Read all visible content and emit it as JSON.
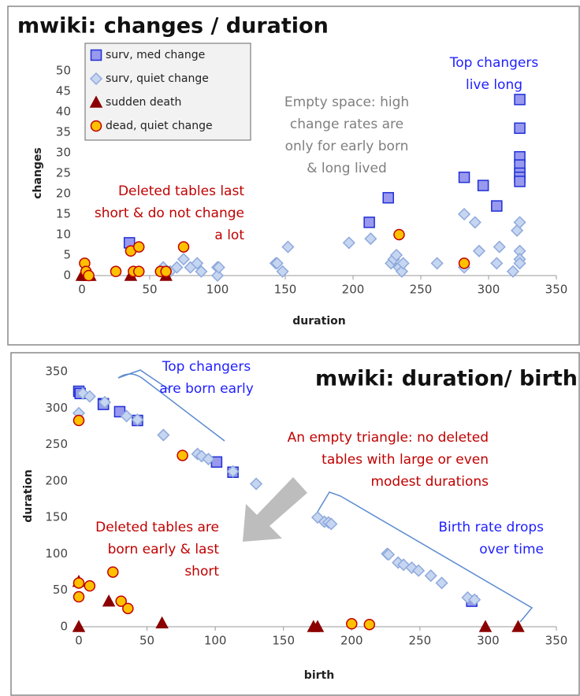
{
  "chart_data": [
    {
      "type": "scatter",
      "title": "mwiki:  changes / duration",
      "xlabel": "duration",
      "ylabel": "changes",
      "xlim": [
        0,
        350
      ],
      "ylim": [
        0,
        50
      ],
      "xticks": [
        0,
        50,
        100,
        150,
        200,
        250,
        300,
        350
      ],
      "yticks": [
        0,
        5,
        10,
        15,
        20,
        25,
        30,
        35,
        40,
        45,
        50
      ],
      "legend": "upper left",
      "series": [
        {
          "name": "surv, med change",
          "marker": "square",
          "color": "#9999ee",
          "edgecolor": "#1f2fd6",
          "x": [
            35,
            212,
            226,
            282,
            296,
            306,
            323,
            323,
            323,
            323,
            323,
            323,
            323
          ],
          "values": [
            8,
            13,
            19,
            24,
            22,
            17,
            43,
            36,
            29,
            27,
            25,
            24,
            23
          ]
        },
        {
          "name": "surv, quiet change",
          "marker": "diamond",
          "color": "#c6d6f1",
          "edgecolor": "#8ea9dc",
          "x": [
            60,
            65,
            70,
            75,
            80,
            85,
            88,
            100,
            100,
            101,
            143,
            144,
            148,
            152,
            197,
            213,
            228,
            230,
            232,
            234,
            236,
            237,
            262,
            282,
            282,
            290,
            293,
            306,
            308,
            318,
            321,
            323,
            323,
            323,
            323
          ],
          "values": [
            2,
            1,
            2,
            4,
            2,
            3,
            1,
            2,
            0,
            2,
            3,
            3,
            1,
            7,
            8,
            9,
            3,
            4,
            5,
            2,
            1,
            3,
            3,
            15,
            2,
            13,
            6,
            3,
            7,
            1,
            11,
            13,
            6,
            4,
            3
          ]
        },
        {
          "name": "sudden death",
          "marker": "triangle",
          "color": "#8b0000",
          "edgecolor": "#8b0000",
          "x": [
            0,
            2,
            4,
            6,
            36,
            62
          ],
          "values": [
            0,
            0,
            0,
            0,
            0,
            0
          ]
        },
        {
          "name": "dead, quiet change",
          "marker": "circle",
          "color": "#ffc000",
          "edgecolor": "#c00000",
          "x": [
            2,
            3,
            5,
            25,
            36,
            38,
            42,
            42,
            58,
            62,
            75,
            234,
            282
          ],
          "values": [
            3,
            1,
            0,
            1,
            6,
            1,
            7,
            1,
            1,
            1,
            7,
            10,
            3
          ]
        }
      ],
      "annotations": [
        {
          "text": [
            "Top changers",
            "live long"
          ],
          "color": "#1f1fff"
        },
        {
          "text": [
            "Empty space: high",
            "change rates are",
            "only for early born",
            "& long lived"
          ],
          "color": "#7f7f7f"
        },
        {
          "text": [
            "Deleted tables last",
            "short & do not change",
            "a lot"
          ],
          "color": "#c00000"
        }
      ]
    },
    {
      "type": "scatter",
      "title": "mwiki: duration/ birth",
      "xlabel": "birth",
      "ylabel": "duration",
      "xlim": [
        0,
        350
      ],
      "ylim": [
        0,
        350
      ],
      "xticks": [
        0,
        50,
        100,
        150,
        200,
        250,
        300,
        350
      ],
      "yticks": [
        0,
        50,
        100,
        150,
        200,
        250,
        300,
        350
      ],
      "legend": false,
      "series": [
        {
          "name": "surv, med change",
          "marker": "square",
          "color": "#9999ee",
          "edgecolor": "#1f2fd6",
          "x": [
            0,
            1,
            18,
            18,
            30,
            43,
            101,
            113,
            288
          ],
          "values": [
            323,
            320,
            306,
            305,
            295,
            283,
            226,
            212,
            35
          ]
        },
        {
          "name": "surv, quiet change",
          "marker": "diamond",
          "color": "#c6d6f1",
          "edgecolor": "#8ea9dc",
          "x": [
            0,
            3,
            8,
            19,
            35,
            43,
            62,
            87,
            90,
            95,
            113,
            130,
            175,
            180,
            183,
            185,
            226,
            227,
            234,
            238,
            244,
            249,
            258,
            266,
            285,
            290
          ],
          "values": [
            293,
            320,
            316,
            308,
            289,
            284,
            263,
            237,
            234,
            230,
            213,
            196,
            150,
            144,
            143,
            141,
            100,
            99,
            88,
            85,
            81,
            77,
            70,
            60,
            40,
            37
          ]
        },
        {
          "name": "sudden death",
          "marker": "triangle",
          "color": "#8b0000",
          "edgecolor": "#8b0000",
          "x": [
            0,
            0,
            22,
            61,
            172,
            175,
            298,
            322
          ],
          "values": [
            62,
            0,
            35,
            5,
            0,
            0,
            0,
            0
          ]
        },
        {
          "name": "dead, quiet change",
          "marker": "circle",
          "color": "#ffc000",
          "edgecolor": "#c00000",
          "x": [
            0,
            0,
            0,
            8,
            25,
            31,
            36,
            76,
            200,
            213
          ],
          "values": [
            283,
            60,
            41,
            56,
            75,
            35,
            25,
            235,
            4,
            3
          ]
        }
      ],
      "annotations": [
        {
          "text": [
            "Top changers",
            "are born early"
          ],
          "color": "#1f1fff"
        },
        {
          "text": [
            "An empty triangle: no deleted",
            "tables with large or even",
            "modest durations"
          ],
          "color": "#c00000"
        },
        {
          "text": [
            "Deleted tables are",
            "born early & last",
            "short"
          ],
          "color": "#c00000"
        },
        {
          "text": [
            "Birth rate drops",
            "over time"
          ],
          "color": "#1f1fff"
        }
      ]
    }
  ]
}
